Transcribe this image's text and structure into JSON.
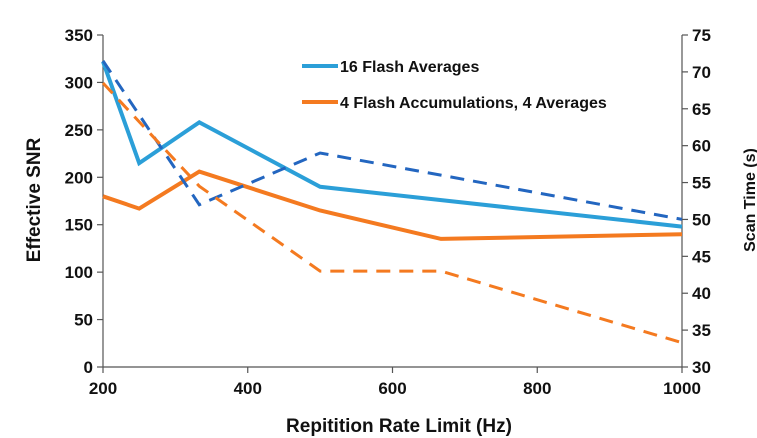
{
  "chart_data": {
    "type": "line",
    "title": "",
    "xlabel": "Repitition Rate Limit (Hz)",
    "ylabel": "Effective SNR",
    "y2label": "Scan Time (s)",
    "xlim": [
      200,
      1000
    ],
    "ylim": [
      0,
      350
    ],
    "y2lim": [
      30,
      75
    ],
    "x_ticks": [
      "200",
      "400",
      "600",
      "800",
      "1000"
    ],
    "y_ticks": [
      "0",
      "50",
      "100",
      "150",
      "200",
      "250",
      "300",
      "350"
    ],
    "y2_ticks": [
      "30",
      "35",
      "40",
      "45",
      "50",
      "55",
      "60",
      "65",
      "70",
      "75"
    ],
    "grid": false,
    "legend_position": "top-right",
    "series": [
      {
        "name": "16 Flash Averages",
        "axis": "left",
        "style": "solid",
        "color": "#2b9fd8",
        "x": [
          200,
          250,
          333,
          500,
          1000
        ],
        "y": [
          322,
          215,
          258,
          190,
          148
        ]
      },
      {
        "name": "4 Flash Accumulations, 4 Averages",
        "axis": "left",
        "style": "solid",
        "color": "#f47a20",
        "x": [
          200,
          250,
          333,
          500,
          667,
          1000
        ],
        "y": [
          180,
          167,
          206,
          165,
          135,
          140
        ]
      },
      {
        "name": "",
        "axis": "right",
        "style": "dashed",
        "color": "#2366c0",
        "x": [
          200,
          333,
          500,
          1000
        ],
        "y": [
          71.5,
          52,
          59,
          50
        ]
      },
      {
        "name": "",
        "axis": "right",
        "style": "dashed",
        "color": "#f47a20",
        "x": [
          200,
          333,
          500,
          667,
          1000
        ],
        "y": [
          68.5,
          54.5,
          43,
          43,
          33.3
        ]
      }
    ]
  }
}
